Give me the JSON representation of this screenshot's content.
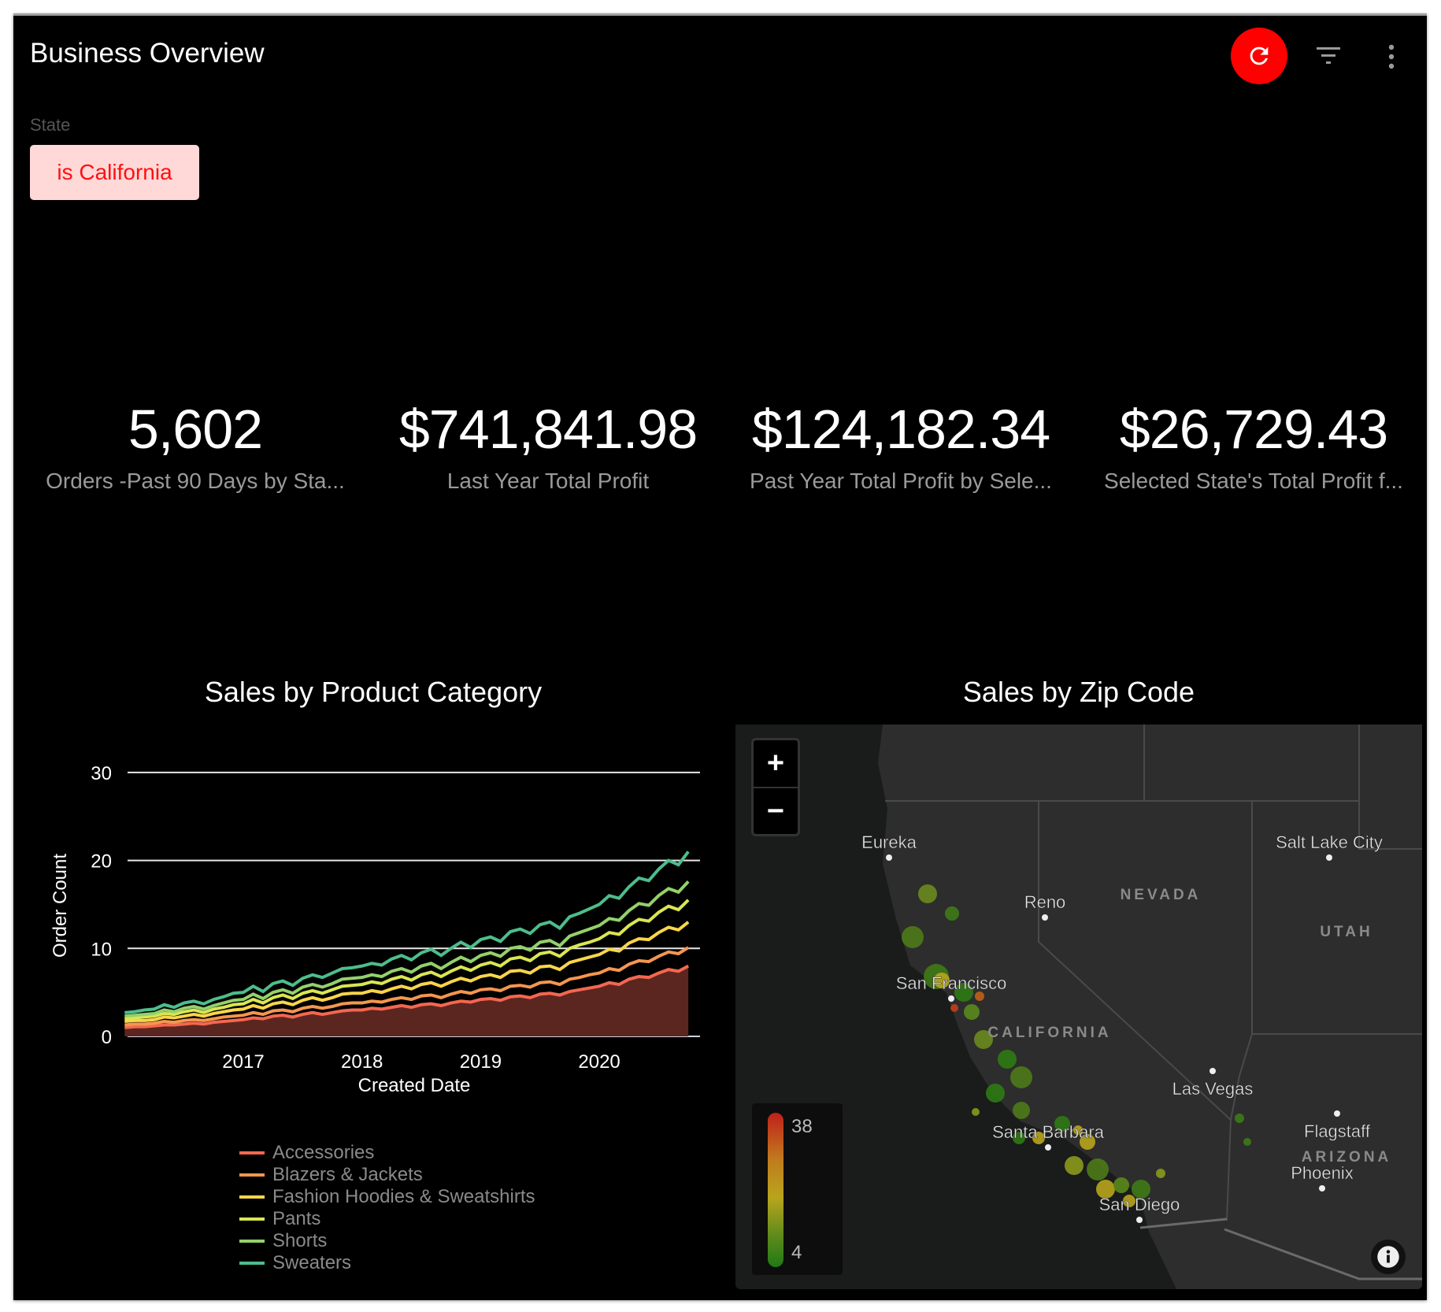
{
  "header": {
    "title": "Business Overview",
    "refresh_icon": "refresh-icon",
    "filter_icon": "filter-icon",
    "menu_icon": "more-vert-icon",
    "accent": "#ff0000"
  },
  "filters": {
    "label": "State",
    "value": "is California"
  },
  "kpis": [
    {
      "value": "5,602",
      "label": "Orders -Past 90 Days by Sta..."
    },
    {
      "value": "$741,841.98",
      "label": "Last Year Total Profit"
    },
    {
      "value": "$124,182.34",
      "label": "Past Year Total Profit by Sele..."
    },
    {
      "value": "$26,729.43",
      "label": "Selected State's Total Profit f..."
    }
  ],
  "sales_chart": {
    "title": "Sales by Product Category"
  },
  "chart_data": {
    "type": "line",
    "stacked": true,
    "title": "Sales by Product Category",
    "xlabel": "Created Date",
    "ylabel": "Order Count",
    "ylim": [
      0,
      30
    ],
    "yticks": [
      "0",
      "10",
      "20",
      "30"
    ],
    "xticks": [
      "2017",
      "2018",
      "2019",
      "2020"
    ],
    "grid": true,
    "legend_position": "bottom",
    "x": [
      "2016-01",
      "2016-02",
      "2016-03",
      "2016-04",
      "2016-05",
      "2016-06",
      "2016-07",
      "2016-08",
      "2016-09",
      "2016-10",
      "2016-11",
      "2016-12",
      "2017-01",
      "2017-02",
      "2017-03",
      "2017-04",
      "2017-05",
      "2017-06",
      "2017-07",
      "2017-08",
      "2017-09",
      "2017-10",
      "2017-11",
      "2017-12",
      "2018-01",
      "2018-02",
      "2018-03",
      "2018-04",
      "2018-05",
      "2018-06",
      "2018-07",
      "2018-08",
      "2018-09",
      "2018-10",
      "2018-11",
      "2018-12",
      "2019-01",
      "2019-02",
      "2019-03",
      "2019-04",
      "2019-05",
      "2019-06",
      "2019-07",
      "2019-08",
      "2019-09",
      "2019-10",
      "2019-11",
      "2019-12",
      "2020-01",
      "2020-02",
      "2020-03",
      "2020-04",
      "2020-05",
      "2020-06",
      "2020-07",
      "2020-08",
      "2020-09",
      "2020-10"
    ],
    "series": [
      {
        "name": "Accessories",
        "color": "#f4674f",
        "values": [
          1.0,
          1.1,
          1.1,
          1.2,
          1.3,
          1.3,
          1.4,
          1.5,
          1.4,
          1.6,
          1.7,
          1.8,
          1.9,
          2.1,
          2.0,
          2.3,
          2.4,
          2.2,
          2.5,
          2.7,
          2.5,
          2.7,
          2.9,
          3.0,
          3.0,
          3.2,
          3.1,
          3.3,
          3.5,
          3.3,
          3.6,
          3.7,
          3.5,
          3.8,
          4.0,
          3.9,
          4.2,
          4.3,
          4.1,
          4.5,
          4.6,
          4.4,
          4.8,
          4.9,
          4.7,
          5.1,
          5.3,
          5.5,
          5.7,
          6.1,
          5.9,
          6.5,
          6.8,
          6.7,
          7.2,
          7.6,
          7.4,
          8.0
        ]
      },
      {
        "name": "Blazers & Jackets",
        "color": "#f5964f",
        "values": [
          0.3,
          0.3,
          0.3,
          0.3,
          0.4,
          0.3,
          0.4,
          0.4,
          0.4,
          0.4,
          0.5,
          0.5,
          0.5,
          0.6,
          0.5,
          0.6,
          0.6,
          0.6,
          0.7,
          0.7,
          0.7,
          0.7,
          0.8,
          0.8,
          0.8,
          0.8,
          0.8,
          0.9,
          0.9,
          0.9,
          1.0,
          1.0,
          0.9,
          1.0,
          1.1,
          1.0,
          1.1,
          1.1,
          1.1,
          1.2,
          1.2,
          1.2,
          1.3,
          1.3,
          1.2,
          1.4,
          1.4,
          1.5,
          1.5,
          1.6,
          1.6,
          1.7,
          1.8,
          1.8,
          1.9,
          2.0,
          2.0,
          2.1
        ]
      },
      {
        "name": "Fashion Hoodies & Sweatshirts",
        "color": "#f8d54a",
        "values": [
          0.4,
          0.4,
          0.4,
          0.4,
          0.5,
          0.5,
          0.5,
          0.6,
          0.5,
          0.6,
          0.6,
          0.7,
          0.7,
          0.8,
          0.7,
          0.8,
          0.9,
          0.8,
          0.9,
          1.0,
          0.9,
          1.0,
          1.1,
          1.1,
          1.1,
          1.2,
          1.1,
          1.2,
          1.3,
          1.2,
          1.3,
          1.4,
          1.3,
          1.4,
          1.5,
          1.4,
          1.5,
          1.6,
          1.5,
          1.7,
          1.7,
          1.6,
          1.8,
          1.8,
          1.7,
          1.9,
          2.0,
          2.0,
          2.1,
          2.2,
          2.2,
          2.4,
          2.5,
          2.5,
          2.7,
          2.8,
          2.7,
          2.9
        ]
      },
      {
        "name": "Pants",
        "color": "#d9e652",
        "values": [
          0.3,
          0.3,
          0.4,
          0.4,
          0.4,
          0.4,
          0.5,
          0.5,
          0.4,
          0.5,
          0.5,
          0.6,
          0.6,
          0.7,
          0.6,
          0.7,
          0.8,
          0.7,
          0.8,
          0.8,
          0.8,
          0.9,
          0.9,
          0.9,
          1.0,
          1.0,
          1.0,
          1.1,
          1.1,
          1.0,
          1.1,
          1.2,
          1.1,
          1.2,
          1.3,
          1.2,
          1.3,
          1.4,
          1.3,
          1.4,
          1.5,
          1.4,
          1.5,
          1.6,
          1.5,
          1.6,
          1.7,
          1.7,
          1.8,
          1.9,
          1.9,
          2.0,
          2.2,
          2.1,
          2.3,
          2.4,
          2.3,
          2.5
        ]
      },
      {
        "name": "Shorts",
        "color": "#93d16b",
        "values": [
          0.3,
          0.3,
          0.3,
          0.3,
          0.4,
          0.3,
          0.4,
          0.4,
          0.4,
          0.4,
          0.5,
          0.5,
          0.5,
          0.6,
          0.5,
          0.6,
          0.6,
          0.6,
          0.7,
          0.7,
          0.7,
          0.7,
          0.8,
          0.8,
          0.8,
          0.8,
          0.8,
          0.9,
          0.9,
          0.9,
          1.0,
          1.0,
          0.9,
          1.0,
          1.1,
          1.0,
          1.1,
          1.1,
          1.1,
          1.2,
          1.2,
          1.2,
          1.3,
          1.3,
          1.2,
          1.4,
          1.4,
          1.5,
          1.5,
          1.6,
          1.6,
          1.7,
          1.8,
          1.8,
          1.9,
          2.0,
          2.0,
          2.1
        ]
      },
      {
        "name": "Sweaters",
        "color": "#4dbd8c",
        "values": [
          0.4,
          0.4,
          0.5,
          0.5,
          0.6,
          0.5,
          0.6,
          0.6,
          0.6,
          0.7,
          0.7,
          0.8,
          0.8,
          0.9,
          0.8,
          1.0,
          1.0,
          0.9,
          1.0,
          1.1,
          1.1,
          1.2,
          1.2,
          1.2,
          1.3,
          1.3,
          1.3,
          1.4,
          1.5,
          1.4,
          1.5,
          1.6,
          1.5,
          1.6,
          1.7,
          1.6,
          1.8,
          1.8,
          1.7,
          1.9,
          2.0,
          1.9,
          2.0,
          2.1,
          2.0,
          2.2,
          2.2,
          2.3,
          2.4,
          2.6,
          2.5,
          2.7,
          2.9,
          2.8,
          3.0,
          3.2,
          3.1,
          3.4
        ]
      }
    ]
  },
  "map": {
    "title": "Sales by Zip Code",
    "zoom_in": "+",
    "zoom_out": "−",
    "legend": {
      "max": "38",
      "min": "4",
      "colors": [
        "#c0201a",
        "#b8a51c",
        "#1f7a15"
      ]
    },
    "cities": [
      "Eureka",
      "Reno",
      "San Francisco",
      "Salt Lake City",
      "Las Vegas",
      "Santa Barbara",
      "San Diego",
      "Flagstaff",
      "Phoenix"
    ],
    "states": [
      "NEVADA",
      "UTAH",
      "CALIFORNIA",
      "ARIZONA"
    ],
    "info_icon": "info-icon"
  }
}
